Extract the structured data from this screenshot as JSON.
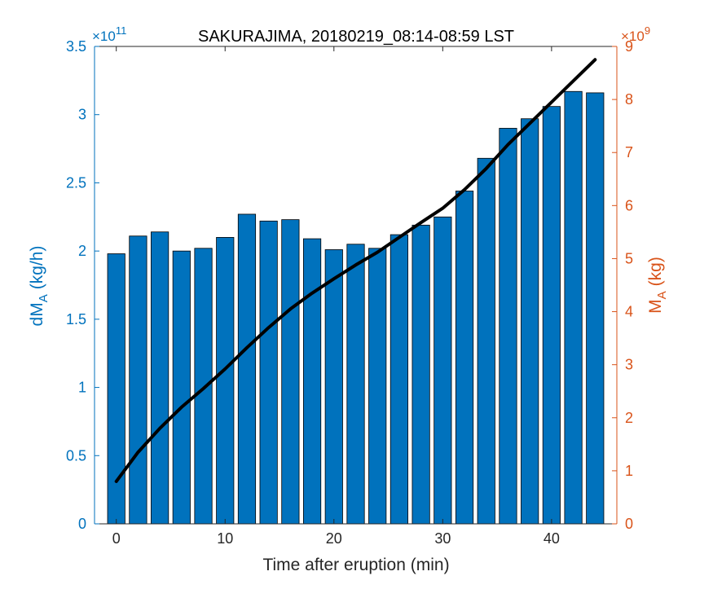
{
  "chart_data": {
    "type": "bar",
    "title": "SAKURAJIMA, 20180219_08:14-08:59 LST",
    "xlabel": "Time after eruption (min)",
    "ylabel_left": {
      "main": "dM",
      "sub": "A",
      "unit": "(kg/h)"
    },
    "ylabel_right": {
      "main": "M",
      "sub": "A",
      "unit": "(kg)"
    },
    "left_exponent": {
      "base": "×10",
      "power": "11"
    },
    "right_exponent": {
      "base": "×10",
      "power": "9"
    },
    "xlim": [
      -2,
      46
    ],
    "ylim_left": [
      0,
      3.5
    ],
    "ylim_right": [
      0,
      9
    ],
    "x_ticks": [
      0,
      10,
      20,
      30,
      40
    ],
    "y_ticks_left": [
      "0",
      "0.5",
      "1",
      "1.5",
      "2",
      "2.5",
      "3",
      "3.5"
    ],
    "y_ticks_right": [
      "0",
      "1",
      "2",
      "3",
      "4",
      "5",
      "6",
      "7",
      "8",
      "9"
    ],
    "bar_color": "#0072bd",
    "line_color": "#000000",
    "left_axis_color": "#0072bd",
    "right_axis_color": "#d95319",
    "grid": false,
    "bars": {
      "name": "dM_A",
      "axis": "left",
      "x": [
        0,
        2,
        4,
        6,
        8,
        10,
        12,
        14,
        16,
        18,
        20,
        22,
        24,
        26,
        28,
        30,
        32,
        34,
        36,
        38,
        40,
        42,
        44
      ],
      "values": [
        1.98,
        2.11,
        2.14,
        2.0,
        2.02,
        2.1,
        2.27,
        2.22,
        2.23,
        2.09,
        2.01,
        2.05,
        2.02,
        2.12,
        2.19,
        2.25,
        2.44,
        2.68,
        2.9,
        2.97,
        3.06,
        3.17,
        3.16
      ]
    },
    "line": {
      "name": "M_A",
      "axis": "right",
      "x": [
        0,
        2,
        4,
        6,
        8,
        10,
        12,
        14,
        16,
        18,
        20,
        22,
        24,
        26,
        28,
        30,
        32,
        34,
        36,
        38,
        40,
        42,
        44
      ],
      "values": [
        0.8,
        1.35,
        1.8,
        2.2,
        2.55,
        2.92,
        3.32,
        3.7,
        4.05,
        4.35,
        4.62,
        4.88,
        5.12,
        5.4,
        5.68,
        5.95,
        6.3,
        6.7,
        7.15,
        7.55,
        7.95,
        8.35,
        8.75
      ]
    }
  }
}
